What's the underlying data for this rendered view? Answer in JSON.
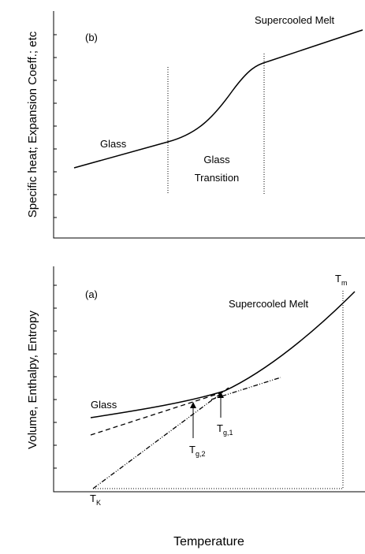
{
  "panel_b": {
    "label": "(b)",
    "y_label": "Specific heat; Expansion Coeff.; etc",
    "melt": "Supercooled Melt",
    "glass": "Glass",
    "transition": [
      "Glass",
      "Transition"
    ]
  },
  "panel_a": {
    "label": "(a)",
    "y_label": "Volume, Enthalpy, Entropy",
    "melt": "Supercooled Melt",
    "glass": "Glass",
    "tm": {
      "main": "T",
      "sub": "m"
    },
    "tg2": {
      "main": "T",
      "sub": "g,2"
    },
    "tg1": {
      "main": "T",
      "sub": "g,1"
    },
    "tk": {
      "main": "T",
      "sub": "K"
    }
  },
  "x_label": "Temperature"
}
